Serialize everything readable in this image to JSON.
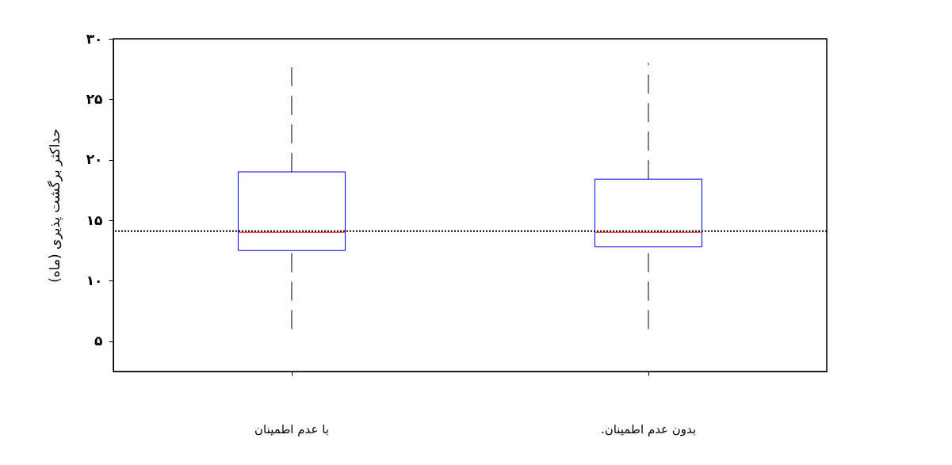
{
  "chart_data": {
    "type": "box",
    "ylabel": "حداکثر برگشت پذیری (ماه)",
    "categories": [
      "با عدم اطمینان",
      ".بدون عدم اطمینان"
    ],
    "series": [
      {
        "color": "#0000ff",
        "boxes": [
          {
            "low": 6,
            "q1": 12.5,
            "median": 14,
            "q3": 19,
            "high": 28
          },
          {
            "low": 6,
            "q1": 12.8,
            "median": 14,
            "q3": 18.4,
            "high": 28
          }
        ]
      }
    ],
    "ylim": [
      2.5,
      30
    ],
    "yticks": [
      {
        "value": 5,
        "label": "۵"
      },
      {
        "value": 10,
        "label": "۱۰"
      },
      {
        "value": 15,
        "label": "۱۵"
      },
      {
        "value": 20,
        "label": "۲۰"
      },
      {
        "value": 25,
        "label": "۲۵"
      },
      {
        "value": 30,
        "label": "۳۰"
      }
    ],
    "ref_lines": [
      {
        "axis": "y",
        "value": 14.1,
        "color": "#000000",
        "line_style": "dotted"
      }
    ],
    "grid": false
  }
}
